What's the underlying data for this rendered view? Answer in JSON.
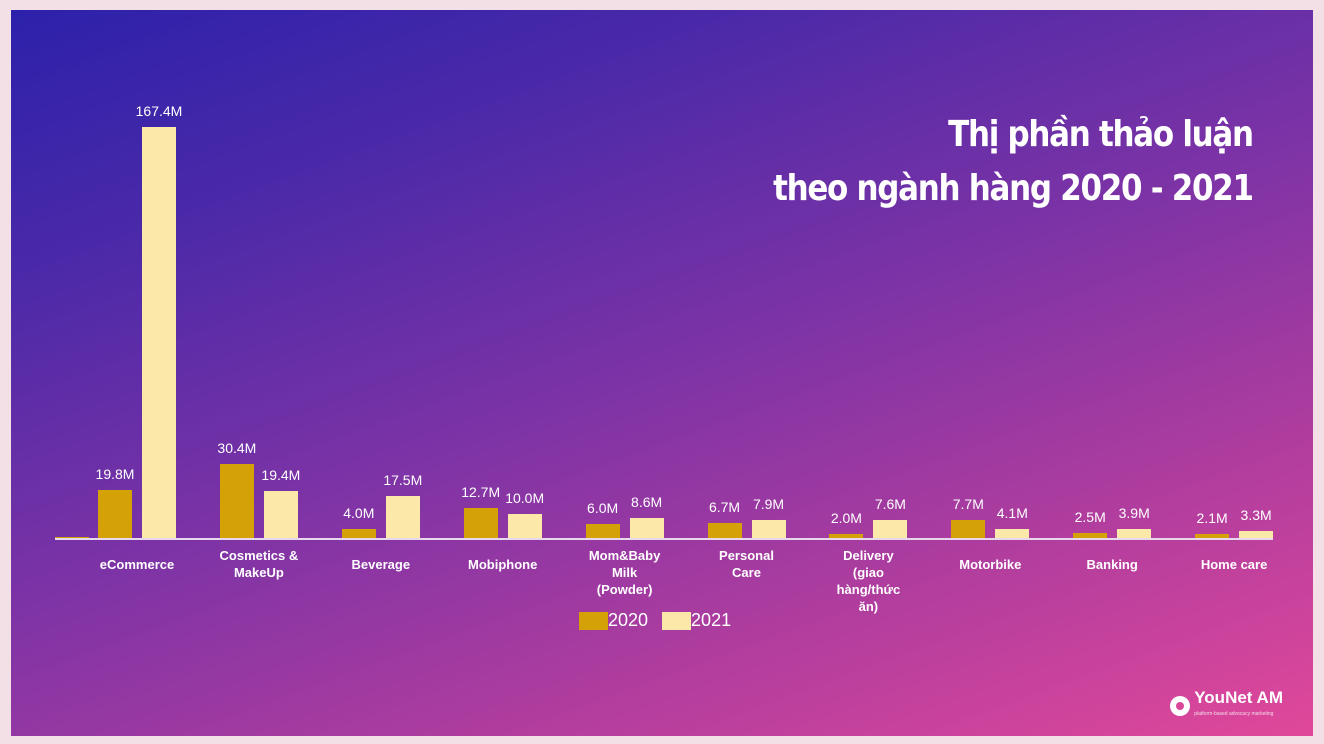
{
  "title": {
    "line1": "Thị phần thảo luận",
    "line2": "theo ngành hàng 2020 - 2021"
  },
  "legend": {
    "series_2020": "2020",
    "series_2021": "2021"
  },
  "colors": {
    "series_2020": "#D4A106",
    "series_2021": "#FCE8A8",
    "axis": "#E8D8EE",
    "background_start": "#2C21AB",
    "background_end": "#E0489A",
    "page_border": "#F3DFE6"
  },
  "logo": {
    "name": "YouNet AM",
    "tagline": "platform-based advocacy marketing"
  },
  "chart_data": {
    "type": "bar",
    "title": "Thị phần thảo luận theo ngành hàng 2020 - 2021",
    "xlabel": "",
    "ylabel": "",
    "grid": false,
    "legend_position": "bottom",
    "categories": [
      "eCommerce",
      "Cosmetics & MakeUp",
      "Beverage",
      "Mobiphone",
      "Mom&Baby Milk (Powder)",
      "Personal Care",
      "Delivery (giao hàng/thức ăn)",
      "Motorbike",
      "Banking",
      "Home care"
    ],
    "series": [
      {
        "name": "2020",
        "values": [
          19.8,
          30.4,
          4.0,
          12.7,
          6.0,
          6.7,
          2.0,
          7.7,
          2.5,
          2.1
        ]
      },
      {
        "name": "2021",
        "values": [
          167.4,
          19.4,
          17.5,
          10.0,
          8.6,
          7.9,
          7.6,
          4.1,
          3.9,
          3.3
        ]
      }
    ],
    "value_labels": {
      "2020": [
        "19.8M",
        "30.4M",
        "4.0M",
        "12.7M",
        "6.0M",
        "6.7M",
        "2.0M",
        "7.7M",
        "2.5M",
        "2.1M"
      ],
      "2021": [
        "167.4M",
        "19.4M",
        "17.5M",
        "10.0M",
        "8.6M",
        "7.9M",
        "7.6M",
        "4.1M",
        "3.9M",
        "3.3M"
      ]
    },
    "category_labels": [
      [
        "eCommerce"
      ],
      [
        "Cosmetics &",
        "MakeUp"
      ],
      [
        "Beverage"
      ],
      [
        "Mobiphone"
      ],
      [
        "Mom&Baby",
        "Milk",
        "(Powder)"
      ],
      [
        "Personal",
        "Care"
      ],
      [
        "Delivery",
        "(giao",
        "hàng/thức",
        "ăn)"
      ],
      [
        "Motorbike"
      ],
      [
        "Banking"
      ],
      [
        "Home care"
      ]
    ],
    "ylim": [
      0,
      170
    ],
    "unit": "M"
  }
}
